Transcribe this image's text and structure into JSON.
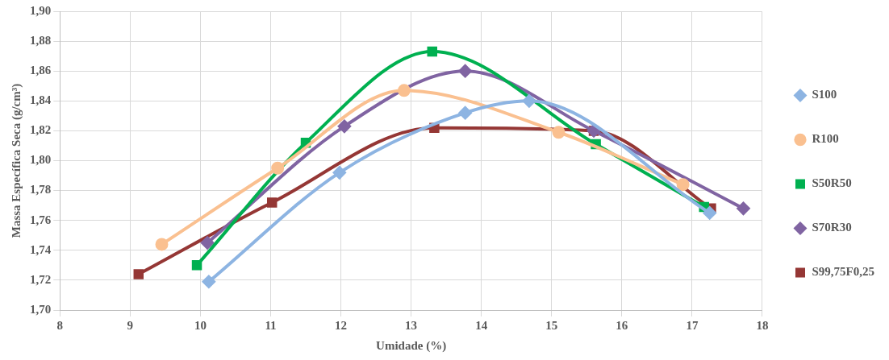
{
  "chart_data": {
    "type": "line",
    "xlabel": "Umidade (%)",
    "ylabel": "Massa Específica Seca (g/cm³)",
    "xlim": [
      8,
      18
    ],
    "xticks": [
      8,
      9,
      10,
      11,
      12,
      13,
      14,
      15,
      16,
      17,
      18
    ],
    "ylim": [
      1.7,
      1.9
    ],
    "yticks": [
      {
        "value": 1.7,
        "label": "1,70"
      },
      {
        "value": 1.72,
        "label": "1,72"
      },
      {
        "value": 1.74,
        "label": "1,74"
      },
      {
        "value": 1.76,
        "label": "1,76"
      },
      {
        "value": 1.78,
        "label": "1,78"
      },
      {
        "value": 1.8,
        "label": "1,80"
      },
      {
        "value": 1.82,
        "label": "1,82"
      },
      {
        "value": 1.84,
        "label": "1,84"
      },
      {
        "value": 1.86,
        "label": "1,86"
      },
      {
        "value": 1.88,
        "label": "1,88"
      },
      {
        "value": 1.9,
        "label": "1,90"
      }
    ],
    "grid": true,
    "legend": "right",
    "series": [
      {
        "name": "S100",
        "color": "#8db4e2",
        "marker": "diamond",
        "x": [
          10.12,
          11.98,
          13.77,
          14.68,
          17.25
        ],
        "values": [
          1.719,
          1.792,
          1.832,
          1.84,
          1.765
        ]
      },
      {
        "name": "R100",
        "color": "#fac090",
        "marker": "circle",
        "x": [
          9.45,
          11.1,
          12.9,
          15.1,
          16.87
        ],
        "values": [
          1.744,
          1.795,
          1.847,
          1.819,
          1.784
        ]
      },
      {
        "name": "S50R50",
        "color": "#00b050",
        "marker": "square",
        "x": [
          9.95,
          11.5,
          13.3,
          15.63,
          17.17
        ],
        "values": [
          1.73,
          1.812,
          1.873,
          1.811,
          1.769
        ]
      },
      {
        "name": "S70R30",
        "color": "#8064a2",
        "marker": "diamond",
        "x": [
          10.1,
          12.05,
          13.77,
          15.6,
          17.73
        ],
        "values": [
          1.745,
          1.823,
          1.86,
          1.82,
          1.768
        ]
      },
      {
        "name": "S99,75F0,25",
        "color": "#953735",
        "marker": "square",
        "x": [
          9.12,
          11.02,
          13.33,
          15.6,
          17.27
        ],
        "values": [
          1.724,
          1.772,
          1.822,
          1.82,
          1.768
        ]
      }
    ]
  }
}
